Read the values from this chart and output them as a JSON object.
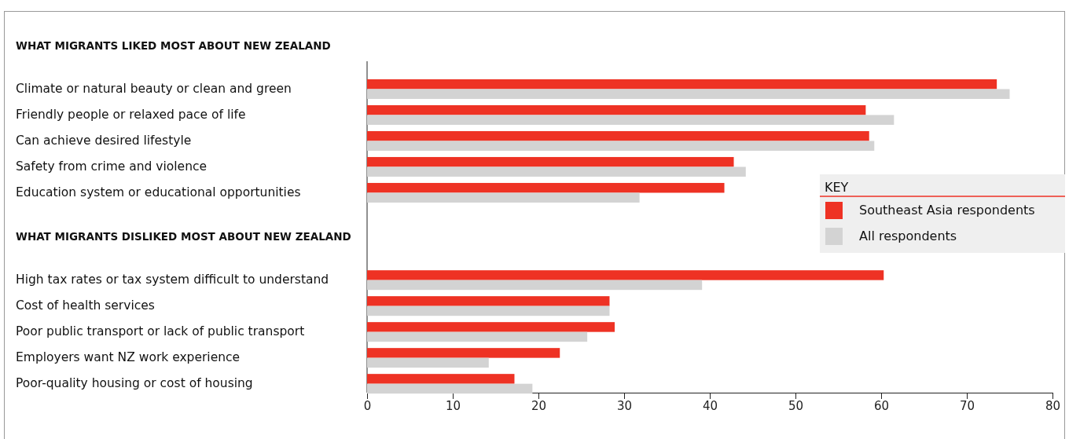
{
  "chart_data": {
    "type": "bar",
    "orientation": "horizontal",
    "legend_title": "KEY",
    "legend": "right",
    "categories": [
      "WHAT MIGRANTS LIKED MOST ABOUT NEW ZEALAND",
      "Climate or natural beauty or clean and green",
      "Friendly people or relaxed pace of life",
      "Can achieve desired lifestyle",
      "Safety from crime and violence",
      "Education system or educational opportunities",
      "WHAT MIGRANTS DISLIKED MOST ABOUT NEW ZEALAND",
      "High tax rates or tax system difficult to understand",
      "Cost of health services",
      "Poor public transport or lack of public transport",
      "Employers want NZ work experience",
      "Poor-quality housing or cost of housing"
    ],
    "series": [
      {
        "name": "Southeast Asia respondents",
        "color": "#ee3224",
        "values": [
          null,
          73.5,
          58.2,
          58.6,
          42.8,
          41.7,
          null,
          60.3,
          28.3,
          28.9,
          22.5,
          17.2
        ]
      },
      {
        "name": "All respondents",
        "color": "#d3d3d3",
        "values": [
          null,
          75.0,
          61.5,
          59.2,
          44.2,
          31.8,
          null,
          39.1,
          28.3,
          25.7,
          14.2,
          19.3
        ]
      }
    ],
    "xlim": [
      0,
      80
    ],
    "xticks": [
      0,
      10,
      20,
      30,
      40,
      50,
      60,
      70,
      80
    ]
  }
}
